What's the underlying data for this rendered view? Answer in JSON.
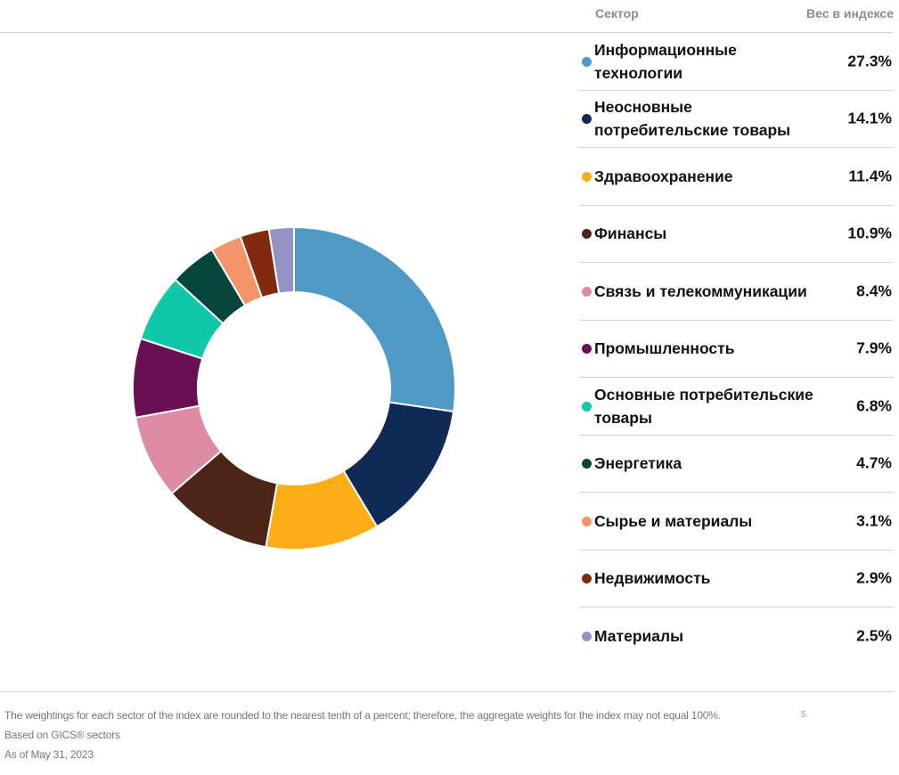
{
  "header": {
    "sector_label": "Сектор",
    "weight_label": "Вес в индексе"
  },
  "chart_data": {
    "type": "pie",
    "donut": true,
    "categories": [
      "Информационные технологии",
      "Неосновные потребительские товары",
      "Здравоохранение",
      "Финансы",
      "Связь и телекоммуникации",
      "Промышленность",
      "Основные потребительские товары",
      "Энергетика",
      "Сырье и материалы",
      "Недвижимость",
      "Материалы"
    ],
    "values": [
      27.3,
      14.1,
      11.4,
      10.9,
      8.4,
      7.9,
      6.8,
      4.7,
      3.1,
      2.9,
      2.5
    ],
    "value_labels": [
      "27.3%",
      "14.1%",
      "11.4%",
      "10.9%",
      "8.4%",
      "7.9%",
      "6.8%",
      "4.7%",
      "3.1%",
      "2.9%",
      "2.5%"
    ],
    "colors": [
      "#4f9ac4",
      "#0e2a55",
      "#fdad16",
      "#4b2616",
      "#dd8ca4",
      "#6b0f55",
      "#0ec8a7",
      "#04463b",
      "#f4946b",
      "#812a0d",
      "#9491c5"
    ],
    "unit": "%",
    "legend_position": "right"
  },
  "notes": {
    "line1": "The weightings for each sector of the index are rounded to the nearest tenth of a percent; therefore, the aggregate weights for the index may not equal 100%.",
    "line2": "Based on GICS® sectors",
    "line3": "As of May 31, 2023",
    "stray": "5."
  }
}
